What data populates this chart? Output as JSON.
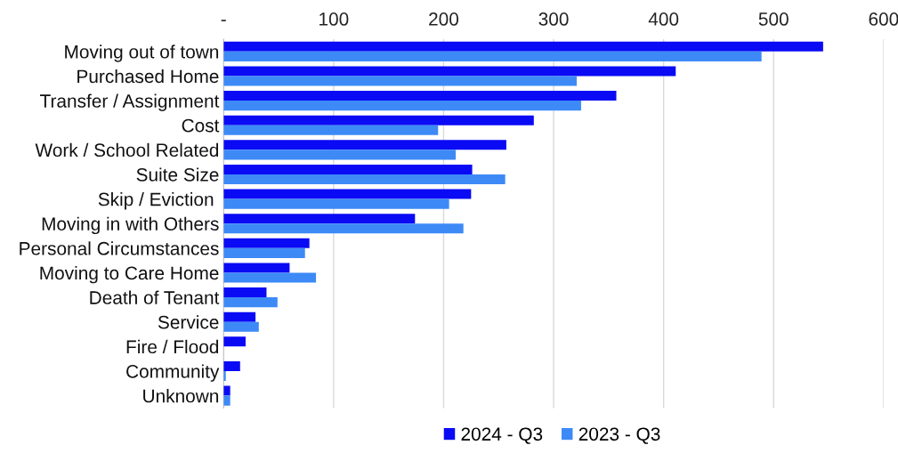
{
  "chart_data": {
    "type": "bar",
    "orientation": "horizontal",
    "categories": [
      "Moving out of town",
      "Purchased Home",
      "Transfer / Assignment",
      "Cost",
      "Work / School Related",
      "Suite Size",
      "Skip / Eviction ",
      "Moving in with Others",
      "Personal Circumstances",
      "Moving to Care Home",
      "Death of Tenant",
      "Service",
      "Fire / Flood",
      "Community",
      "Unknown"
    ],
    "series": [
      {
        "name": "2024 - Q3",
        "color": "#0a0af5",
        "values": [
          545,
          411,
          357,
          282,
          257,
          226,
          225,
          174,
          78,
          60,
          39,
          29,
          20,
          15,
          6
        ]
      },
      {
        "name": "2023 - Q3",
        "color": "#3d8af7",
        "values": [
          489,
          321,
          325,
          195,
          211,
          256,
          205,
          218,
          74,
          84,
          49,
          32,
          0,
          2,
          6
        ]
      }
    ],
    "xlim": [
      0,
      600
    ],
    "xticks": [
      {
        "value": 0,
        "label": "-"
      },
      100,
      200,
      300,
      400,
      500,
      600
    ],
    "grid": "x",
    "legend": "bottom"
  }
}
